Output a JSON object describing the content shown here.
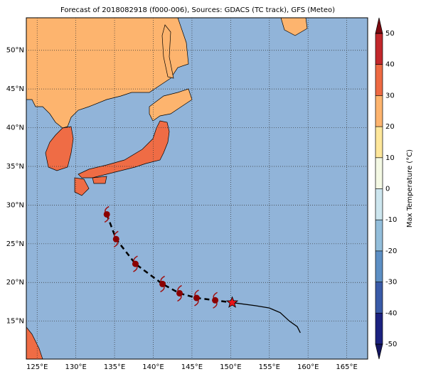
{
  "title": "Forecast of 2018082918 (f000-006), Sources: GDACS (TC track), GFS (Meteo)",
  "map": {
    "lonlim": [
      123.6,
      167.7
    ],
    "latlim": [
      10.1,
      54.2
    ],
    "lonticks": [
      {
        "value": 125,
        "label": "125°E"
      },
      {
        "value": 130,
        "label": "130°E"
      },
      {
        "value": 135,
        "label": "135°E"
      },
      {
        "value": 140,
        "label": "140°E"
      },
      {
        "value": 145,
        "label": "145°E"
      },
      {
        "value": 150,
        "label": "150°E"
      },
      {
        "value": 155,
        "label": "155°E"
      },
      {
        "value": 160,
        "label": "160°E"
      },
      {
        "value": 165,
        "label": "165°E"
      }
    ],
    "latticks": [
      {
        "value": 15,
        "label": "15°N"
      },
      {
        "value": 20,
        "label": "20°N"
      },
      {
        "value": 25,
        "label": "25°N"
      },
      {
        "value": 30,
        "label": "30°N"
      },
      {
        "value": 35,
        "label": "35°N"
      },
      {
        "value": 40,
        "label": "40°N"
      },
      {
        "value": 45,
        "label": "45°N"
      },
      {
        "value": 50,
        "label": "50°N"
      }
    ],
    "track": {
      "lon": [
        134.0,
        135.2,
        137.7,
        141.2,
        143.4,
        145.6,
        148.0
      ],
      "lat": [
        28.8,
        25.6,
        22.4,
        19.8,
        18.6,
        18.0,
        17.7
      ]
    },
    "current": {
      "lon": 150.2,
      "lat": 17.4
    },
    "forecast_line": {
      "lon": [
        150.2,
        153.2,
        155.0,
        156.4,
        157.6,
        158.6,
        159.0
      ],
      "lat": [
        17.4,
        17.0,
        16.7,
        16.1,
        15.0,
        14.3,
        13.5
      ]
    }
  },
  "colorbar": {
    "label": "Max Temperature (°C)",
    "ticks": [
      -50,
      -40,
      -30,
      -20,
      -10,
      0,
      10,
      20,
      30,
      40,
      50
    ],
    "colors": [
      "#1c2280",
      "#3a5ba8",
      "#5d8fc4",
      "#93bedb",
      "#cde6ef",
      "#f4f9e4",
      "#fee79b",
      "#fdb46e",
      "#ee6a43",
      "#c2282c"
    ],
    "under": "#141661",
    "over": "#7d0a10"
  }
}
